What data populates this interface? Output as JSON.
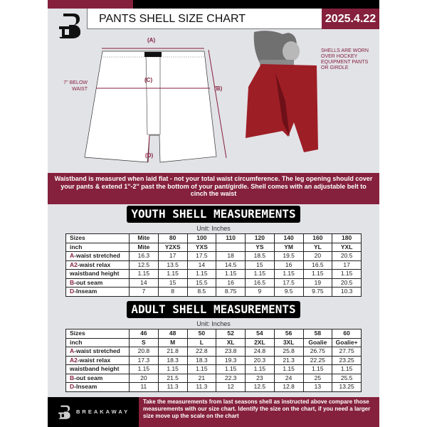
{
  "header": {
    "title": "PANTS SHELL SIZE CHART",
    "date": "2025.4.22"
  },
  "diagram": {
    "label_a": "(A)",
    "label_b": "(B)",
    "label_c": "(C)",
    "label_d": "(D)",
    "below_waist": "7'' BELOW WAIST",
    "note": "SHELLS ARE WORN OVER HOCKEY EQUIPMENT PANTS OR GIRDLE"
  },
  "info": "Waistband is measured when laid flat - not your total waist circumference. The leg opening should cover your pants & extend 1''-2'' past the bottom of your pant/girdle. Shell comes with an adjustable belt to cinch the waist",
  "youth": {
    "title": "YOUTH SHELL MEASUREMENTS",
    "unit": "Unit: Inches",
    "rows": [
      {
        "prefix": "",
        "label": "Sizes",
        "values": [
          "Mite",
          "80",
          "100",
          "110",
          "120",
          "140",
          "160",
          "180"
        ]
      },
      {
        "prefix": "",
        "label": "inch",
        "values": [
          "Mite",
          "Y2XS",
          "YXS",
          "",
          "YS",
          "YM",
          "YL",
          "YXL"
        ]
      },
      {
        "prefix": "A",
        "label": "-waist stretched",
        "values": [
          "16.3",
          "17",
          "17.5",
          "18",
          "18.5",
          "19.5",
          "20",
          "20.5"
        ]
      },
      {
        "prefix": "A2",
        "label": "-waist relax",
        "values": [
          "12.5",
          "13.5",
          "14",
          "14.5",
          "15",
          "16",
          "16.5",
          "17"
        ]
      },
      {
        "prefix": "",
        "label": "waistband height",
        "values": [
          "1.15",
          "1.15",
          "1.15",
          "1.15",
          "1.15",
          "1.15",
          "1.15",
          "1.15"
        ]
      },
      {
        "prefix": "B",
        "label": "-out seam",
        "values": [
          "14",
          "15",
          "15.5",
          "16",
          "16.5",
          "17.5",
          "19",
          "20.5"
        ]
      },
      {
        "prefix": "D",
        "label": "-Inseam",
        "values": [
          "7",
          "8",
          "8.5",
          "8.75",
          "9",
          "9.5",
          "9.75",
          "10.3"
        ]
      }
    ]
  },
  "adult": {
    "title": "ADULT SHELL MEASUREMENTS",
    "unit": "Unit: Inches",
    "rows": [
      {
        "prefix": "",
        "label": "Sizes",
        "values": [
          "46",
          "48",
          "50",
          "52",
          "54",
          "56",
          "58",
          "60"
        ]
      },
      {
        "prefix": "",
        "label": "inch",
        "values": [
          "S",
          "M",
          "L",
          "XL",
          "2XL",
          "3XL",
          "Goalie",
          "Goalie+"
        ]
      },
      {
        "prefix": "A",
        "label": "-waist stretched",
        "values": [
          "20.8",
          "21.8",
          "22.8",
          "23.8",
          "24.8",
          "25.8",
          "26.75",
          "27.75"
        ]
      },
      {
        "prefix": "A2",
        "label": "-waist relax",
        "values": [
          "17.3",
          "18.3",
          "18.3",
          "19.3",
          "20.3",
          "21.3",
          "22.25",
          "23.25"
        ]
      },
      {
        "prefix": "",
        "label": "waistband height",
        "values": [
          "1.15",
          "1.15",
          "1.15",
          "1.15",
          "1.15",
          "1.15",
          "1.15",
          "1.15"
        ]
      },
      {
        "prefix": "B",
        "label": "-out seam",
        "values": [
          "20",
          "21.5",
          "21",
          "22.3",
          "23",
          "24",
          "25",
          "25.5"
        ]
      },
      {
        "prefix": "D",
        "label": "-Inseam",
        "values": [
          "11",
          "11.3",
          "11.3",
          "12",
          "12.5",
          "12.8",
          "13",
          "13.25"
        ]
      }
    ]
  },
  "footer": {
    "brand": "BREAKAWAY",
    "text": "Take the measurements from last seasons shell as instructed above compare those measurements  with our size chart. Identify the size on the chart, if you need a larger size move up the scale on the chart"
  },
  "colors": {
    "accent": "#85213d",
    "background": "#e2e3e7"
  }
}
